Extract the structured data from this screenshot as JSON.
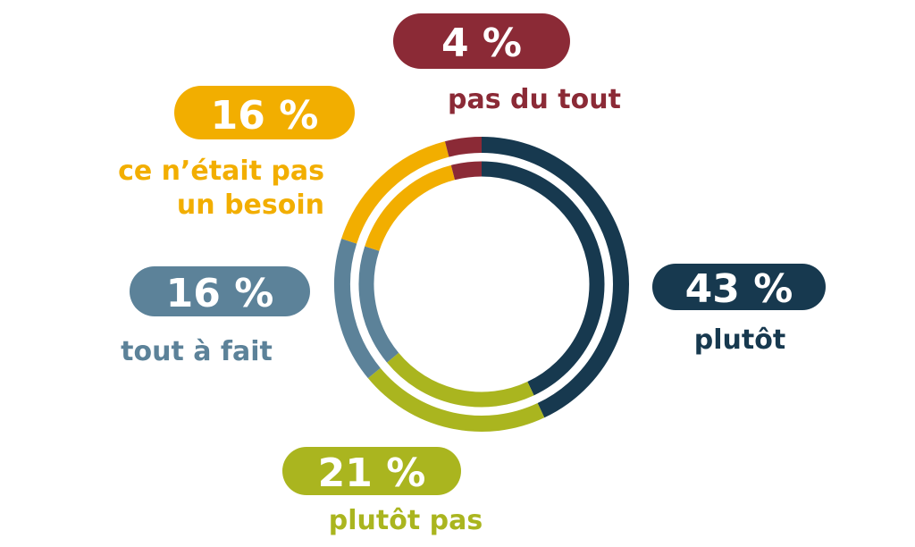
{
  "chart_data": {
    "type": "pie",
    "style": "double-ring donut",
    "slices": [
      {
        "label": "plutôt",
        "value": 43,
        "value_label": "43 %",
        "color": "#17394f"
      },
      {
        "label": "plutôt pas",
        "value": 21,
        "value_label": "21 %",
        "color": "#aab51f"
      },
      {
        "label": "tout à fait",
        "value": 16,
        "value_label": "16 %",
        "color": "#5c8299"
      },
      {
        "label": "ce n’était pas un besoin",
        "label_lines": [
          "ce n’était pas",
          "un besoin"
        ],
        "value": 16,
        "value_label": "16 %",
        "color": "#f2ae00"
      },
      {
        "label": "pas du tout",
        "value": 4,
        "value_label": "4 %",
        "color": "#8b2a36"
      }
    ]
  }
}
